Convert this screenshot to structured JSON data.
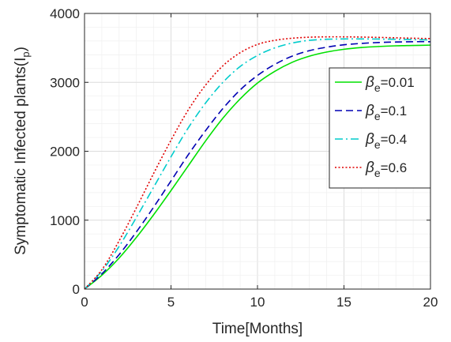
{
  "chart_data": {
    "type": "line",
    "xlabel": "Time[Months]",
    "ylabel_main": "Symptomatic Infected plants(I",
    "ylabel_sub": "p",
    "ylabel_close": ")",
    "xlim": [
      0,
      20
    ],
    "ylim": [
      0,
      4000
    ],
    "xticks": [
      "0",
      "5",
      "10",
      "15",
      "20"
    ],
    "yticks": [
      "0",
      "1000",
      "2000",
      "3000",
      "4000"
    ],
    "grid": true,
    "legend_position": "right",
    "legend_symbol": "β",
    "legend_sub": "e",
    "series": [
      {
        "name": "=0.01",
        "color": "#00e000",
        "style": "solid",
        "x": [
          0,
          1,
          2,
          3,
          4,
          5,
          6,
          7,
          8,
          9,
          10,
          11,
          12,
          13,
          14,
          15,
          16,
          17,
          18,
          19,
          20
        ],
        "y": [
          0,
          200,
          450,
          750,
          1080,
          1430,
          1790,
          2150,
          2480,
          2760,
          2990,
          3160,
          3290,
          3380,
          3440,
          3480,
          3505,
          3520,
          3530,
          3535,
          3540
        ]
      },
      {
        "name": "=0.1",
        "color": "#0000b3",
        "style": "dashed",
        "x": [
          0,
          1,
          2,
          3,
          4,
          5,
          6,
          7,
          8,
          9,
          10,
          11,
          12,
          13,
          14,
          15,
          16,
          17,
          18,
          19,
          20
        ],
        "y": [
          0,
          220,
          500,
          830,
          1190,
          1570,
          1950,
          2300,
          2620,
          2890,
          3100,
          3260,
          3380,
          3460,
          3510,
          3545,
          3565,
          3578,
          3585,
          3590,
          3590
        ]
      },
      {
        "name": "=0.4",
        "color": "#00cccc",
        "style": "dashdot",
        "x": [
          0,
          1,
          2,
          3,
          4,
          5,
          6,
          7,
          8,
          9,
          10,
          11,
          12,
          13,
          14,
          15,
          16,
          17,
          18,
          19,
          20
        ],
        "y": [
          0,
          260,
          620,
          1040,
          1480,
          1920,
          2340,
          2700,
          3000,
          3230,
          3390,
          3500,
          3570,
          3610,
          3625,
          3630,
          3630,
          3628,
          3625,
          3620,
          3615
        ]
      },
      {
        "name": "=0.6",
        "color": "#e00000",
        "style": "dotted",
        "x": [
          0,
          1,
          2,
          3,
          4,
          5,
          6,
          7,
          8,
          9,
          10,
          11,
          12,
          13,
          14,
          15,
          16,
          17,
          18,
          19,
          20
        ],
        "y": [
          0,
          280,
          700,
          1180,
          1680,
          2160,
          2600,
          2960,
          3240,
          3430,
          3550,
          3610,
          3640,
          3655,
          3660,
          3660,
          3657,
          3652,
          3646,
          3640,
          3635
        ]
      }
    ]
  }
}
